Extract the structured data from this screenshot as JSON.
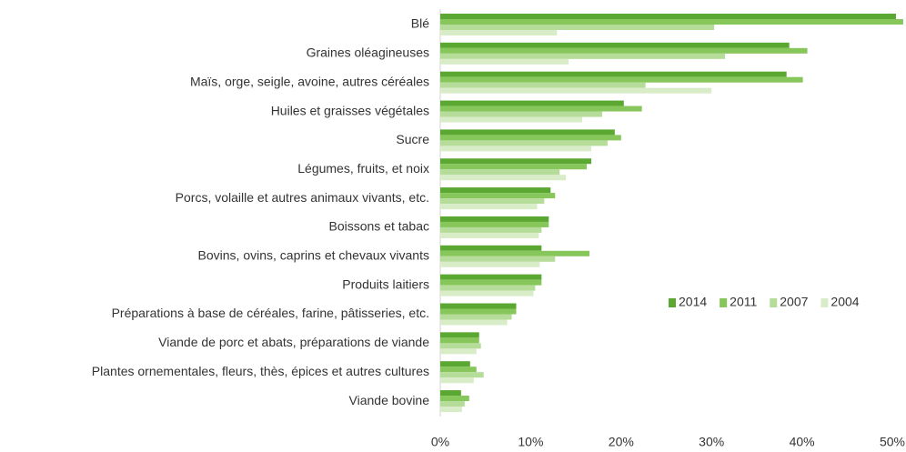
{
  "chart_data": {
    "type": "hbar",
    "categories": [
      "Blé",
      "Graines oléagineuses",
      "Maïs, orge, seigle, avoine, autres céréales",
      "Huiles et graisses végétales",
      "Sucre",
      "Légumes, fruits, et noix",
      "Porcs, volaille et autres animaux vivants, etc.",
      "Boissons et tabac",
      "Bovins, ovins, caprins et chevaux vivants",
      "Produits laitiers",
      "Préparations à base de céréales, farine, pâtisseries, etc.",
      "Viande de porc et abats, préparations de viande",
      "Plantes ornementales, fleurs, thès, épices et autres cultures",
      "Viande bovine"
    ],
    "series": [
      {
        "name": "2014",
        "color": "#5aa832",
        "values": [
          50.4,
          38.6,
          38.3,
          20.3,
          19.3,
          16.7,
          12.2,
          12.0,
          11.2,
          11.2,
          8.4,
          4.3,
          3.3,
          2.3
        ]
      },
      {
        "name": "2011",
        "color": "#86c65a",
        "values": [
          51.2,
          40.6,
          40.1,
          22.3,
          20.0,
          16.2,
          12.7,
          12.0,
          16.5,
          11.2,
          8.4,
          4.3,
          4.0,
          3.2
        ]
      },
      {
        "name": "2007",
        "color": "#b5dc98",
        "values": [
          30.3,
          31.5,
          22.7,
          17.9,
          18.5,
          13.2,
          11.5,
          11.2,
          12.7,
          10.5,
          7.9,
          4.5,
          4.8,
          2.7
        ]
      },
      {
        "name": "2004",
        "color": "#d8ecc8",
        "values": [
          12.9,
          14.2,
          30.0,
          15.7,
          16.7,
          13.9,
          10.7,
          10.9,
          11.0,
          10.3,
          7.4,
          4.0,
          3.7,
          2.4
        ]
      }
    ],
    "xlim": [
      0,
      50
    ],
    "xticks": [
      {
        "value": 0,
        "label": "0%"
      },
      {
        "value": 10,
        "label": "10%"
      },
      {
        "value": 20,
        "label": "20%"
      },
      {
        "value": 30,
        "label": "30%"
      },
      {
        "value": 40,
        "label": "40%"
      },
      {
        "value": 50,
        "label": "50%"
      }
    ],
    "grid": false,
    "legend": "right"
  }
}
